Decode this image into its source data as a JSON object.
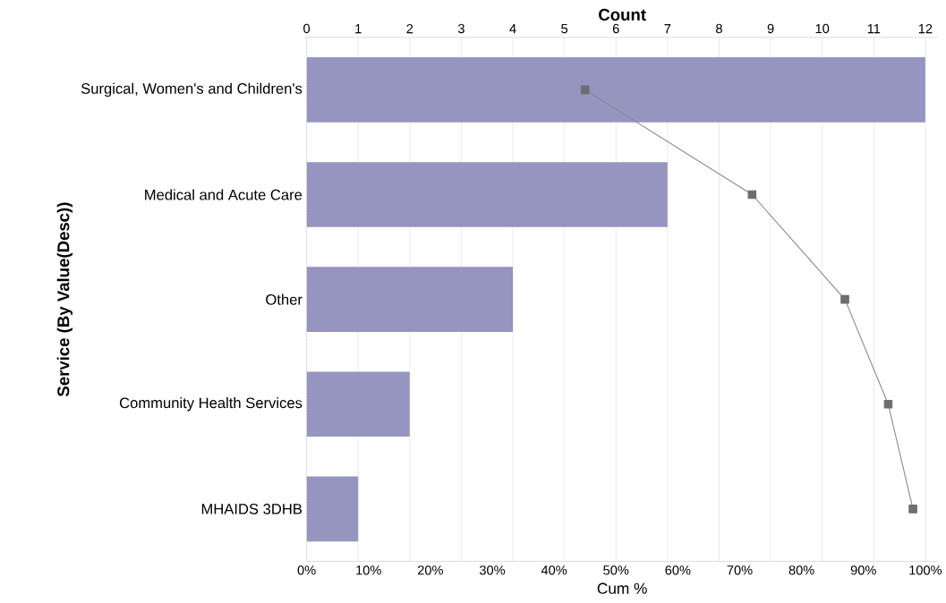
{
  "chart_data": {
    "type": "bar",
    "orientation": "horizontal",
    "xlabel": "Cum %",
    "x2label": "Count",
    "ylabel": "Service (By Value(Desc))",
    "categories": [
      "Surgical, Women's and Children's",
      "Medical and Acute Care",
      "Other",
      "Community Health Services",
      "MHAIDS 3DHB"
    ],
    "series": [
      {
        "axis": "x2",
        "color": "#9595c0",
        "values": [
          12,
          7,
          4,
          2,
          1
        ]
      },
      {
        "type": "line",
        "color": "#888888",
        "marker": "square",
        "values": [
          45,
          72,
          87,
          94,
          98
        ]
      }
    ],
    "xlim": [
      0,
      102
    ],
    "x2lim": [
      0,
      12.24
    ],
    "xticks": [
      {
        "value": 0,
        "label": "0%"
      },
      {
        "value": 10,
        "label": "10%"
      },
      {
        "value": 20,
        "label": "20%"
      },
      {
        "value": 30,
        "label": "30%"
      },
      {
        "value": 40,
        "label": "40%"
      },
      {
        "value": 50,
        "label": "50%"
      },
      {
        "value": 60,
        "label": "60%"
      },
      {
        "value": 70,
        "label": "70%"
      },
      {
        "value": 80,
        "label": "80%"
      },
      {
        "value": 90,
        "label": "90%"
      },
      {
        "value": 100,
        "label": "100%"
      }
    ],
    "x2ticks": [
      0,
      1,
      2,
      3,
      4,
      5,
      6,
      7,
      8,
      9,
      10,
      11,
      12
    ],
    "grid": "x"
  }
}
